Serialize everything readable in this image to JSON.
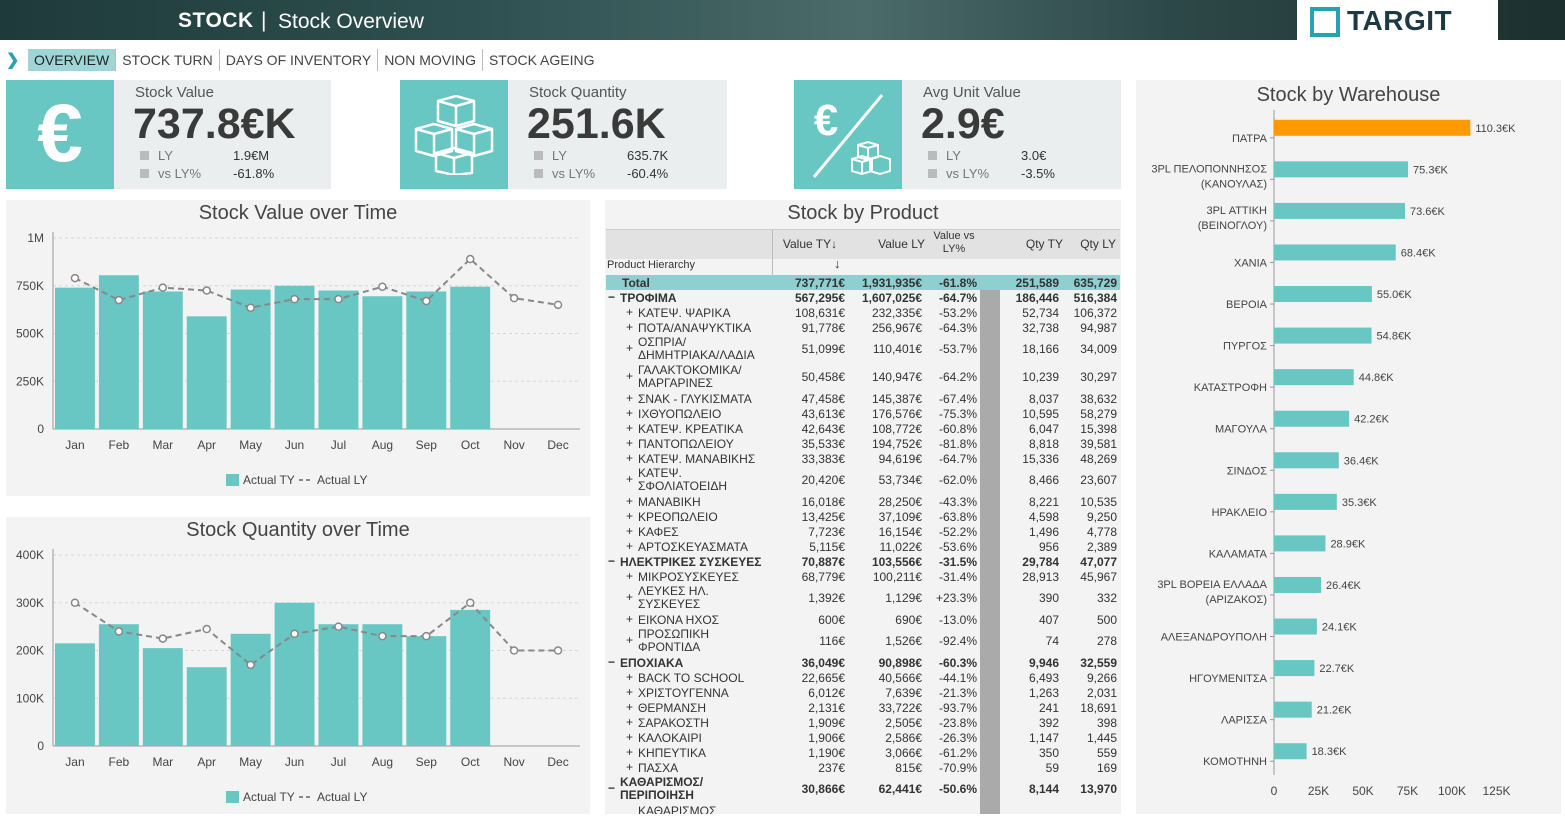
{
  "header": {
    "brand": "STOCK",
    "separator": "|",
    "title": "Stock Overview",
    "logo_text": "TARGIT"
  },
  "tabs": [
    {
      "label": "OVERVIEW",
      "active": true
    },
    {
      "label": "STOCK TURN",
      "active": false
    },
    {
      "label": "DAYS OF INVENTORY",
      "active": false
    },
    {
      "label": "NON MOVING",
      "active": false
    },
    {
      "label": "STOCK AGEING",
      "active": false
    }
  ],
  "kpis": [
    {
      "label": "Stock Value",
      "value": "737.8€K",
      "ly_label": "LY",
      "ly_value": "1.9€M",
      "vs_label": "vs LY%",
      "vs_value": "-61.8%",
      "icon": "euro-icon"
    },
    {
      "label": "Stock Quantity",
      "value": "251.6K",
      "ly_label": "LY",
      "ly_value": "635.7K",
      "vs_label": "vs LY%",
      "vs_value": "-60.4%",
      "icon": "boxes-icon"
    },
    {
      "label": "Avg Unit Value",
      "value": "2.9€",
      "ly_label": "LY",
      "ly_value": "3.0€",
      "vs_label": "vs LY%",
      "vs_value": "-3.5%",
      "icon": "euro-per-box-icon"
    }
  ],
  "colors": {
    "teal": "#68c6c3",
    "orange": "#ff9900",
    "line": "#888888"
  },
  "chart_data": [
    {
      "type": "bar",
      "title": "Stock Value over Time",
      "categories": [
        "Jan",
        "Feb",
        "Mar",
        "Apr",
        "May",
        "Jun",
        "Jul",
        "Aug",
        "Sep",
        "Oct",
        "Nov",
        "Dec"
      ],
      "yticks": [
        "0",
        "250K",
        "500K",
        "750K",
        "1M"
      ],
      "ylim": [
        0,
        1000000
      ],
      "series": [
        {
          "name": "Actual TY",
          "type": "bar",
          "values": [
            740000,
            805000,
            720000,
            590000,
            730000,
            750000,
            725000,
            695000,
            720000,
            745000,
            null,
            null
          ]
        },
        {
          "name": "Actual LY",
          "type": "line",
          "values": [
            790000,
            675000,
            740000,
            725000,
            635000,
            680000,
            680000,
            745000,
            670000,
            890000,
            685000,
            650000
          ]
        }
      ],
      "legend": "bottom"
    },
    {
      "type": "bar",
      "title": "Stock Quantity over Time",
      "categories": [
        "Jan",
        "Feb",
        "Mar",
        "Apr",
        "May",
        "Jun",
        "Jul",
        "Aug",
        "Sep",
        "Oct",
        "Nov",
        "Dec"
      ],
      "yticks": [
        "0",
        "100K",
        "200K",
        "300K",
        "400K"
      ],
      "ylim": [
        0,
        400000
      ],
      "series": [
        {
          "name": "Actual TY",
          "type": "bar",
          "values": [
            215000,
            255000,
            205000,
            165000,
            235000,
            300000,
            255000,
            255000,
            230000,
            285000,
            null,
            null
          ]
        },
        {
          "name": "Actual LY",
          "type": "line",
          "values": [
            300000,
            240000,
            225000,
            245000,
            170000,
            235000,
            250000,
            230000,
            230000,
            300000,
            200000,
            200000
          ]
        }
      ],
      "legend": "bottom"
    },
    {
      "type": "bar",
      "orientation": "horizontal",
      "title": "Stock by Warehouse",
      "categories": [
        "ΠΑΤΡΑ",
        "3PL ΠΕΛΟΠΟΝΝΗΣΟΣ (ΚΑΝΟΥΛΑΣ)",
        "3PL ΑΤΤΙΚΗ (ΒΕΙΝΟΓΛΟΥ)",
        "ΧΑΝΙΑ",
        "ΒΕΡΟΙΑ",
        "ΠΥΡΓΟΣ",
        "ΚΑΤΑΣΤΡΟΦΗ",
        "ΜΑΓΟΥΛΑ",
        "ΣΙΝΔΟΣ",
        "ΗΡΑΚΛΕΙΟ",
        "ΚΑΛΑΜΑΤΑ",
        "3PL ΒΟΡΕΙΑ ΕΛΛΑΔΑ (ΑΡΙΖΑΚΟΣ)",
        "ΑΛΕΞΑΝΔΡΟΥΠΟΛΗ",
        "ΗΓΟΥΜΕΝΙΤΣΑ",
        "ΛΑΡΙΣΣΑ",
        "ΚΟΜΟΤΗΝΗ"
      ],
      "values": [
        110300,
        75300,
        73600,
        68400,
        55000,
        54800,
        44800,
        42200,
        36400,
        35300,
        28900,
        26400,
        24100,
        22700,
        21200,
        18300
      ],
      "labels": [
        "110.3€K",
        "75.3€K",
        "73.6€K",
        "68.4€K",
        "55.0€K",
        "54.8€K",
        "44.8€K",
        "42.2€K",
        "36.4€K",
        "35.3€K",
        "28.9€K",
        "26.4€K",
        "24.1€K",
        "22.7€K",
        "21.2€K",
        "18.3€K"
      ],
      "highlight_index": 0,
      "xticks": [
        "0",
        "25K",
        "50K",
        "75K",
        "100K",
        "125K"
      ],
      "xtick_values": [
        0,
        25000,
        50000,
        75000,
        100000,
        125000
      ],
      "xlim": [
        0,
        150000
      ]
    }
  ],
  "product_table": {
    "title": "Stock by Product",
    "columns": [
      "Value TY",
      "Value LY",
      "Value vs LY%",
      "Qty TY",
      "Qty LY"
    ],
    "sort_icon": "↓",
    "hierarchy_label": "Product Hierarchy",
    "rows": [
      {
        "level": 0,
        "kind": "total",
        "name": "Total",
        "v": [
          "737,771€",
          "1,931,935€",
          "-61.8%",
          "251,589",
          "635,729"
        ]
      },
      {
        "level": 0,
        "kind": "grp",
        "sym": "−",
        "name": "ΤΡΟΦΙΜΑ",
        "v": [
          "567,295€",
          "1,607,025€",
          "-64.7%",
          "186,446",
          "516,384"
        ]
      },
      {
        "level": 1,
        "sym": "+",
        "name": "ΚΑΤΕΨ. ΨΑΡΙΚΑ",
        "v": [
          "108,631€",
          "232,335€",
          "-53.2%",
          "52,734",
          "106,372"
        ]
      },
      {
        "level": 1,
        "sym": "+",
        "name": "ΠΟΤΑ/ΑΝΑΨΥΚΤΙΚΑ",
        "v": [
          "91,778€",
          "256,967€",
          "-64.3%",
          "32,738",
          "94,987"
        ]
      },
      {
        "level": 1,
        "sym": "+",
        "name": "ΟΣΠΡΙΑ/",
        "name2": "ΔΗΜΗΤΡΙΑΚΑ/ΛΑΔΙΑ",
        "v": [
          "51,099€",
          "110,401€",
          "-53.7%",
          "18,166",
          "34,009"
        ]
      },
      {
        "level": 1,
        "sym": "+",
        "name": "ΓΑΛΑΚΤΟΚΟΜΙΚΑ/",
        "name2": "ΜΑΡΓΑΡΙΝΕΣ",
        "v": [
          "50,458€",
          "140,947€",
          "-64.2%",
          "10,239",
          "30,297"
        ]
      },
      {
        "level": 1,
        "sym": "+",
        "name": "ΣΝΑΚ - ΓΛΥΚΙΣΜΑΤΑ",
        "v": [
          "47,458€",
          "145,387€",
          "-67.4%",
          "8,037",
          "38,632"
        ]
      },
      {
        "level": 1,
        "sym": "+",
        "name": "ΙΧΘΥΟΠΩΛΕΙΟ",
        "v": [
          "43,613€",
          "176,576€",
          "-75.3%",
          "10,595",
          "58,279"
        ]
      },
      {
        "level": 1,
        "sym": "+",
        "name": "ΚΑΤΕΨ. ΚΡΕΑΤΙΚΑ",
        "v": [
          "42,643€",
          "108,772€",
          "-60.8%",
          "6,047",
          "15,398"
        ]
      },
      {
        "level": 1,
        "sym": "+",
        "name": "ΠΑΝΤΟΠΩΛΕΙΟΥ",
        "v": [
          "35,533€",
          "194,752€",
          "-81.8%",
          "8,818",
          "39,581"
        ]
      },
      {
        "level": 1,
        "sym": "+",
        "name": "ΚΑΤΕΨ. ΜΑΝΑΒΙΚΗΣ",
        "v": [
          "33,383€",
          "94,619€",
          "-64.7%",
          "15,336",
          "48,269"
        ]
      },
      {
        "level": 1,
        "sym": "+",
        "name": "ΚΑΤΕΨ.",
        "name2": "ΣΦΟΛΙΑΤΟΕΙΔΗ",
        "v": [
          "20,420€",
          "53,734€",
          "-62.0%",
          "8,466",
          "23,607"
        ]
      },
      {
        "level": 1,
        "sym": "+",
        "name": "ΜΑΝΑΒΙΚΗ",
        "v": [
          "16,018€",
          "28,250€",
          "-43.3%",
          "8,221",
          "10,535"
        ]
      },
      {
        "level": 1,
        "sym": "+",
        "name": "ΚΡΕΟΠΩΛΕΙΟ",
        "v": [
          "13,425€",
          "37,109€",
          "-63.8%",
          "4,598",
          "9,250"
        ]
      },
      {
        "level": 1,
        "sym": "+",
        "name": "ΚΑΦΕΣ",
        "v": [
          "7,723€",
          "16,154€",
          "-52.2%",
          "1,496",
          "4,778"
        ]
      },
      {
        "level": 1,
        "sym": "+",
        "name": "ΑΡΤΟΣΚΕΥΑΣΜΑΤΑ",
        "v": [
          "5,115€",
          "11,022€",
          "-53.6%",
          "956",
          "2,389"
        ]
      },
      {
        "level": 0,
        "kind": "grp",
        "sym": "−",
        "name": "ΗΛΕΚΤΡΙΚΕΣ ΣΥΣΚΕΥΕΣ",
        "v": [
          "70,887€",
          "103,556€",
          "-31.5%",
          "29,784",
          "47,077"
        ]
      },
      {
        "level": 1,
        "sym": "+",
        "name": "ΜΙΚΡΟΣΥΣΚΕΥΕΣ",
        "v": [
          "68,779€",
          "100,211€",
          "-31.4%",
          "28,913",
          "45,967"
        ]
      },
      {
        "level": 1,
        "sym": "+",
        "name": "ΛΕΥΚΕΣ ΗΛ.",
        "name2": "ΣΥΣΚΕΥΕΣ",
        "v": [
          "1,392€",
          "1,129€",
          "+23.3%",
          "390",
          "332"
        ]
      },
      {
        "level": 1,
        "sym": "+",
        "name": "ΕΙΚΟΝΑ ΗΧΟΣ",
        "v": [
          "600€",
          "690€",
          "-13.0%",
          "407",
          "500"
        ]
      },
      {
        "level": 1,
        "sym": "+",
        "name": "ΠΡΟΣΩΠΙΚΗ",
        "name2": "ΦΡΟΝΤΙΔΑ",
        "v": [
          "116€",
          "1,526€",
          "-92.4%",
          "74",
          "278"
        ]
      },
      {
        "level": 0,
        "kind": "grp",
        "sym": "−",
        "name": "ΕΠΟΧΙΑΚΑ",
        "v": [
          "36,049€",
          "90,898€",
          "-60.3%",
          "9,946",
          "32,559"
        ]
      },
      {
        "level": 1,
        "sym": "+",
        "name": "BACK TO SCHOOL",
        "v": [
          "22,665€",
          "40,566€",
          "-44.1%",
          "6,493",
          "9,266"
        ]
      },
      {
        "level": 1,
        "sym": "+",
        "name": "ΧΡΙΣΤΟΥΓΕΝΝΑ",
        "v": [
          "6,012€",
          "7,639€",
          "-21.3%",
          "1,263",
          "2,031"
        ]
      },
      {
        "level": 1,
        "sym": "+",
        "name": "ΘΕΡΜΑΝΣΗ",
        "v": [
          "2,131€",
          "33,722€",
          "-93.7%",
          "241",
          "18,691"
        ]
      },
      {
        "level": 1,
        "sym": "+",
        "name": "ΣΑΡΑΚΟΣΤΗ",
        "v": [
          "1,909€",
          "2,505€",
          "-23.8%",
          "392",
          "398"
        ]
      },
      {
        "level": 1,
        "sym": "+",
        "name": "ΚΑΛΟΚΑΙΡΙ",
        "v": [
          "1,906€",
          "2,586€",
          "-26.3%",
          "1,147",
          "1,445"
        ]
      },
      {
        "level": 1,
        "sym": "+",
        "name": "ΚΗΠΕΥΤΙΚΑ",
        "v": [
          "1,190€",
          "3,066€",
          "-61.2%",
          "350",
          "559"
        ]
      },
      {
        "level": 1,
        "sym": "+",
        "name": "ΠΑΣΧΑ",
        "v": [
          "237€",
          "815€",
          "-70.9%",
          "59",
          "169"
        ]
      },
      {
        "level": 0,
        "kind": "grp",
        "sym": "−",
        "name": "ΚΑΘΑΡΙΣΜΟΣ/",
        "name2": "ΠΕΡΙΠΟΙΗΣΗ",
        "v": [
          "30,866€",
          "62,441€",
          "-50.6%",
          "8,144",
          "13,970"
        ]
      },
      {
        "level": 1,
        "sym": "",
        "name": "ΚΑΘΑΡΙΣΜΟΣ",
        "v": [
          "",
          "",
          "",
          "",
          ""
        ]
      }
    ]
  }
}
